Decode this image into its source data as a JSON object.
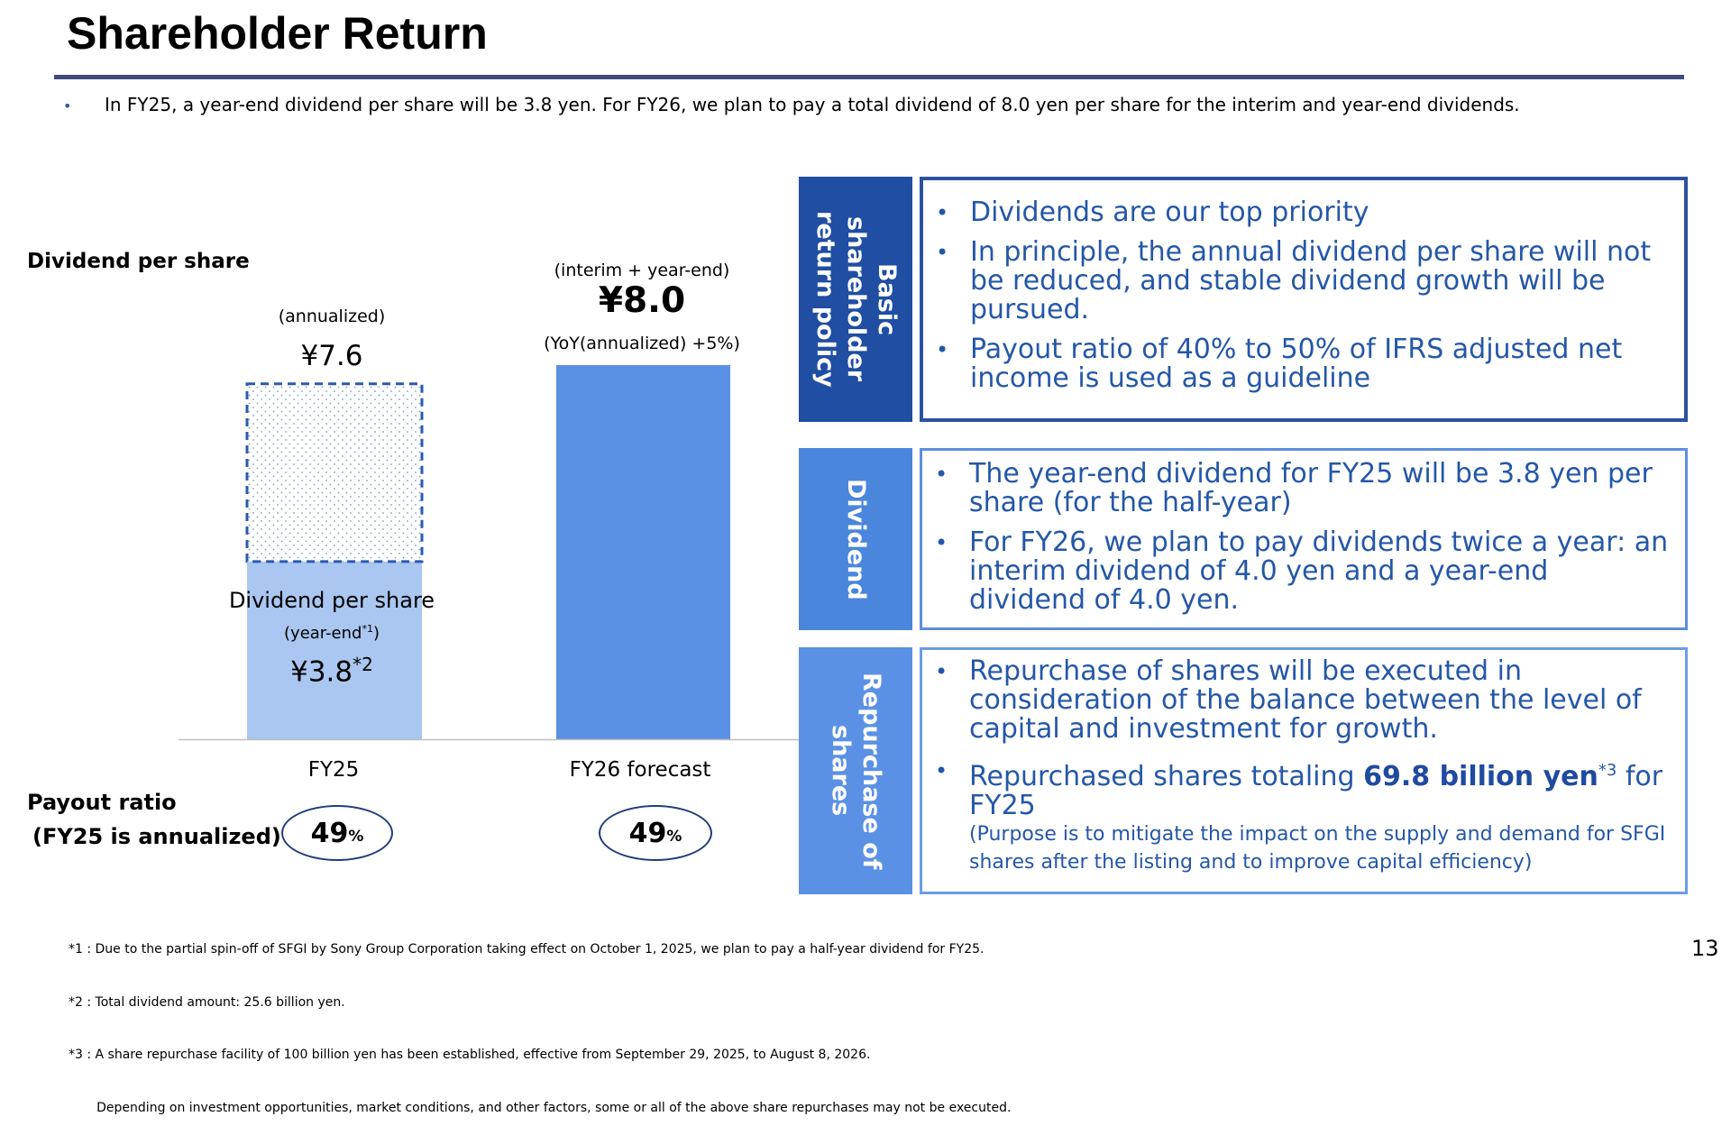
{
  "header": {
    "title": "Shareholder Return",
    "lead": "In FY25, a year-end dividend per share will be 3.8 yen. For FY26, we plan to pay a total dividend of 8.0 yen per share for the interim and year-end dividends."
  },
  "chart_labels": {
    "dividend_per_share": "Dividend per share",
    "fy25_annualized_note": "(annualized)",
    "fy25_annualized_value": "¥7.6",
    "fy25_bar_label": "Dividend per share",
    "fy25_bar_sub": "(year-end",
    "fy25_bar_sub_sup": "*1",
    "fy25_bar_sub_close": ")",
    "fy25_bar_value": "¥3.8",
    "fy25_bar_value_sup": "*2",
    "fy26_note": "(interim + year-end)",
    "fy26_value": "¥8.0",
    "fy26_yoy": "(YoY(annualized) +5%)",
    "payout_title": "Payout ratio",
    "payout_sub": "(FY25 is annualized)",
    "payout_fy25": "49",
    "payout_fy26": "49",
    "payout_unit": "%"
  },
  "chart_data": {
    "type": "bar",
    "categories": [
      "FY25",
      "FY26 forecast"
    ],
    "series": [
      {
        "name": "year-end",
        "values": [
          3.8,
          null
        ]
      },
      {
        "name": "annualized",
        "values": [
          7.6,
          null
        ]
      },
      {
        "name": "interim + year-end",
        "values": [
          null,
          8.0
        ]
      }
    ],
    "ylabel": "Dividend per share",
    "ylim": [
      0,
      8.0
    ],
    "payout_ratio": [
      49,
      49
    ],
    "colors": {
      "fy25_actual": "#a9c7f0",
      "fy25_dotted_border": "#2a5ab0",
      "fy26": "#5b91e5",
      "axis": "#bfbfbf"
    }
  },
  "panels": [
    {
      "tab": "Basic\nshareholder\nreturn policy",
      "tab_color": "#1f4ea3",
      "border_color": "#2b51a0",
      "bullets": [
        "Dividends are our top priority",
        "In principle, the annual dividend per share will not be reduced, and stable dividend growth will be pursued.",
        "Payout ratio of 40% to 50% of IFRS adjusted net income is used as a guideline"
      ]
    },
    {
      "tab": "Dividend",
      "tab_color": "#4a86dc",
      "border_color": "#5b8fdf",
      "bullets": [
        "The year-end dividend for FY25 will be 3.8 yen per share (for the half-year)",
        "For FY26, we plan to pay dividends twice a year: an interim dividend of 4.0 yen and a year-end dividend of 4.0 yen."
      ]
    },
    {
      "tab": "Repurchase of\nshares",
      "tab_color": "#5b91e5",
      "border_color": "#6a9de6",
      "bullet1": "Repurchase of shares will be executed in consideration of the balance between the level of capital and investment for growth.",
      "bullet2_pre": "Repurchased shares totaling ",
      "bullet2_hl": "69.8 billion yen",
      "bullet2_sup": "*3",
      "bullet2_post": " for FY25",
      "note": "(Purpose is to mitigate the impact on the supply and demand for SFGI shares after the listing and to improve capital efficiency)"
    }
  ],
  "footnotes": [
    "*1 : Due to the partial spin-off of SFGI by Sony Group Corporation taking effect on October 1, 2025, we plan to pay a half-year dividend for FY25.",
    "*2 : Total dividend amount: 25.6 billion yen.",
    "*3 : A share repurchase facility of 100 billion yen has been established, effective from September 29, 2025, to August 8, 2026.",
    "       Depending on investment opportunities, market conditions, and other factors, some or all of the above share repurchases may not be executed."
  ],
  "page_number": "13"
}
